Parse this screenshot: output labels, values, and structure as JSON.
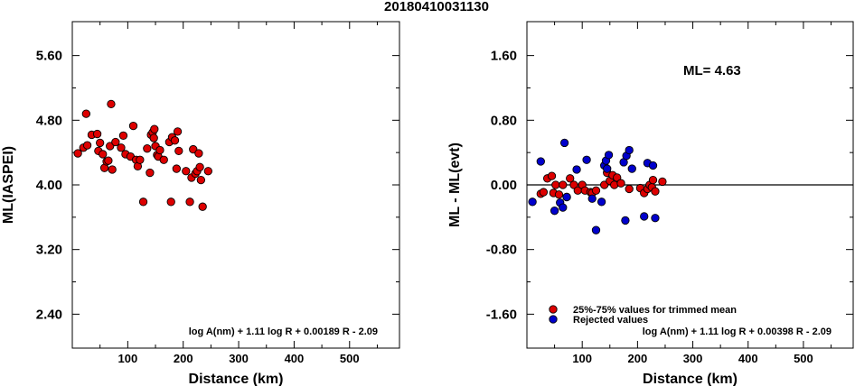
{
  "title": "20180410031130",
  "chart_data": [
    {
      "type": "scatter",
      "ylabel": "ML(IASPEI)",
      "xlabel": "Distance (km)",
      "xlim": [
        0,
        590
      ],
      "ylim": [
        1.98,
        6.02
      ],
      "xticks": [
        100,
        200,
        300,
        400,
        500
      ],
      "yticks": [
        2.4,
        3.2,
        4.0,
        4.8,
        5.6
      ],
      "ytick_labels": [
        "2.40",
        "3.20",
        "4.00",
        "4.80",
        "5.60"
      ],
      "formula": "log A(nm) + 1.11 log R + 0.00189 R - 2.09",
      "series": [
        {
          "color": "#dd0000",
          "points": [
            [
              10,
              4.39
            ],
            [
              20,
              4.46
            ],
            [
              25,
              4.88
            ],
            [
              27,
              4.49
            ],
            [
              35,
              4.62
            ],
            [
              45,
              4.63
            ],
            [
              47,
              4.42
            ],
            [
              50,
              4.52
            ],
            [
              55,
              4.38
            ],
            [
              58,
              4.21
            ],
            [
              62,
              4.29
            ],
            [
              65,
              4.3
            ],
            [
              68,
              4.48
            ],
            [
              70,
              5.0
            ],
            [
              72,
              4.19
            ],
            [
              78,
              4.53
            ],
            [
              88,
              4.46
            ],
            [
              92,
              4.61
            ],
            [
              96,
              4.38
            ],
            [
              105,
              4.35
            ],
            [
              110,
              4.73
            ],
            [
              115,
              4.31
            ],
            [
              118,
              4.23
            ],
            [
              122,
              4.31
            ],
            [
              128,
              3.79
            ],
            [
              135,
              4.45
            ],
            [
              140,
              4.15
            ],
            [
              142,
              4.62
            ],
            [
              145,
              4.65
            ],
            [
              147,
              4.58
            ],
            [
              148,
              4.69
            ],
            [
              150,
              4.48
            ],
            [
              153,
              4.37
            ],
            [
              155,
              4.35
            ],
            [
              158,
              4.43
            ],
            [
              165,
              4.31
            ],
            [
              175,
              4.53
            ],
            [
              178,
              3.79
            ],
            [
              180,
              4.59
            ],
            [
              185,
              4.55
            ],
            [
              188,
              4.2
            ],
            [
              190,
              4.66
            ],
            [
              192,
              4.42
            ],
            [
              205,
              4.17
            ],
            [
              212,
              3.79
            ],
            [
              215,
              4.09
            ],
            [
              218,
              4.44
            ],
            [
              222,
              4.14
            ],
            [
              225,
              4.17
            ],
            [
              228,
              4.39
            ],
            [
              230,
              4.22
            ],
            [
              232,
              4.06
            ],
            [
              235,
              3.73
            ],
            [
              245,
              4.17
            ]
          ]
        }
      ]
    },
    {
      "type": "scatter",
      "ylabel": "ML - ML(evt)",
      "xlabel": "Distance (km)",
      "xlim": [
        0,
        590
      ],
      "ylim": [
        -2.02,
        2.02
      ],
      "xticks": [
        100,
        200,
        300,
        400,
        500
      ],
      "yticks": [
        -1.6,
        -0.8,
        0.0,
        0.8,
        1.6
      ],
      "ytick_labels": [
        "-1.60",
        "-0.80",
        "0.00",
        "0.80",
        "1.60"
      ],
      "reference_line_y": 0.0,
      "ml_label": "ML= 4.63",
      "formula": "log A(nm) + 1.11 log R + 0.00398 R - 2.09",
      "legend": [
        {
          "label": "25%-75% values for trimmed mean",
          "color": "#dd0000"
        },
        {
          "label": "Rejected values",
          "color": "#0000cc"
        }
      ],
      "series": [
        {
          "name": "25%-75% values for trimmed mean",
          "color": "#dd0000",
          "points": [
            [
              25,
              -0.11
            ],
            [
              30,
              -0.09
            ],
            [
              37,
              0.08
            ],
            [
              45,
              0.11
            ],
            [
              48,
              -0.1
            ],
            [
              52,
              0.0
            ],
            [
              58,
              -0.12
            ],
            [
              65,
              0.0
            ],
            [
              72,
              -0.15
            ],
            [
              78,
              0.08
            ],
            [
              85,
              0.0
            ],
            [
              92,
              -0.07
            ],
            [
              100,
              0.0
            ],
            [
              105,
              -0.07
            ],
            [
              115,
              -0.09
            ],
            [
              118,
              -0.1
            ],
            [
              125,
              -0.07
            ],
            [
              140,
              0.0
            ],
            [
              145,
              0.15
            ],
            [
              150,
              0.05
            ],
            [
              155,
              0.12
            ],
            [
              158,
              0.0
            ],
            [
              163,
              0.09
            ],
            [
              170,
              0.02
            ],
            [
              185,
              -0.05
            ],
            [
              205,
              -0.04
            ],
            [
              212,
              -0.1
            ],
            [
              218,
              -0.05
            ],
            [
              222,
              0.0
            ],
            [
              226,
              -0.03
            ],
            [
              228,
              0.06
            ],
            [
              232,
              -0.08
            ],
            [
              245,
              0.04
            ]
          ]
        },
        {
          "name": "Rejected values",
          "color": "#0000cc",
          "points": [
            [
              10,
              -0.21
            ],
            [
              25,
              0.29
            ],
            [
              50,
              -0.32
            ],
            [
              60,
              -0.22
            ],
            [
              65,
              -0.28
            ],
            [
              68,
              0.52
            ],
            [
              72,
              -0.15
            ],
            [
              90,
              0.19
            ],
            [
              108,
              0.31
            ],
            [
              118,
              -0.17
            ],
            [
              125,
              -0.56
            ],
            [
              135,
              -0.21
            ],
            [
              140,
              0.24
            ],
            [
              143,
              0.3
            ],
            [
              145,
              0.2
            ],
            [
              148,
              0.37
            ],
            [
              175,
              0.28
            ],
            [
              178,
              -0.44
            ],
            [
              180,
              0.36
            ],
            [
              185,
              0.43
            ],
            [
              190,
              0.2
            ],
            [
              212,
              -0.39
            ],
            [
              218,
              0.27
            ],
            [
              228,
              0.24
            ],
            [
              232,
              -0.41
            ]
          ]
        }
      ]
    }
  ]
}
